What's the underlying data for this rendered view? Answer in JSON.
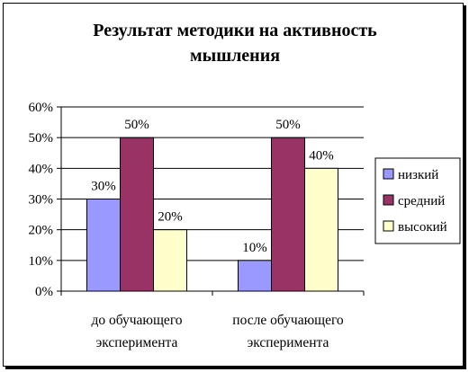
{
  "chart_data": {
    "type": "bar",
    "title_lines": [
      "Результат методики на активность",
      "мышления"
    ],
    "categories": [
      [
        "до обучающего",
        "эксперимента"
      ],
      [
        "после обучающего",
        "эксперимента"
      ]
    ],
    "series": [
      {
        "name": "низкий",
        "values": [
          30,
          10
        ],
        "color": "#9999FF"
      },
      {
        "name": "средний",
        "values": [
          50,
          50
        ],
        "color": "#993366"
      },
      {
        "name": "высокий",
        "values": [
          20,
          40
        ],
        "color": "#FFFFCC"
      }
    ],
    "value_format": "percent",
    "ylim": [
      0,
      60
    ],
    "yticks": [
      0,
      10,
      20,
      30,
      40,
      50,
      60
    ],
    "ytick_labels": [
      "0%",
      "10%",
      "20%",
      "30%",
      "40%",
      "50%",
      "60%"
    ],
    "data_labels": true,
    "grid": true,
    "legend_position": "right"
  }
}
